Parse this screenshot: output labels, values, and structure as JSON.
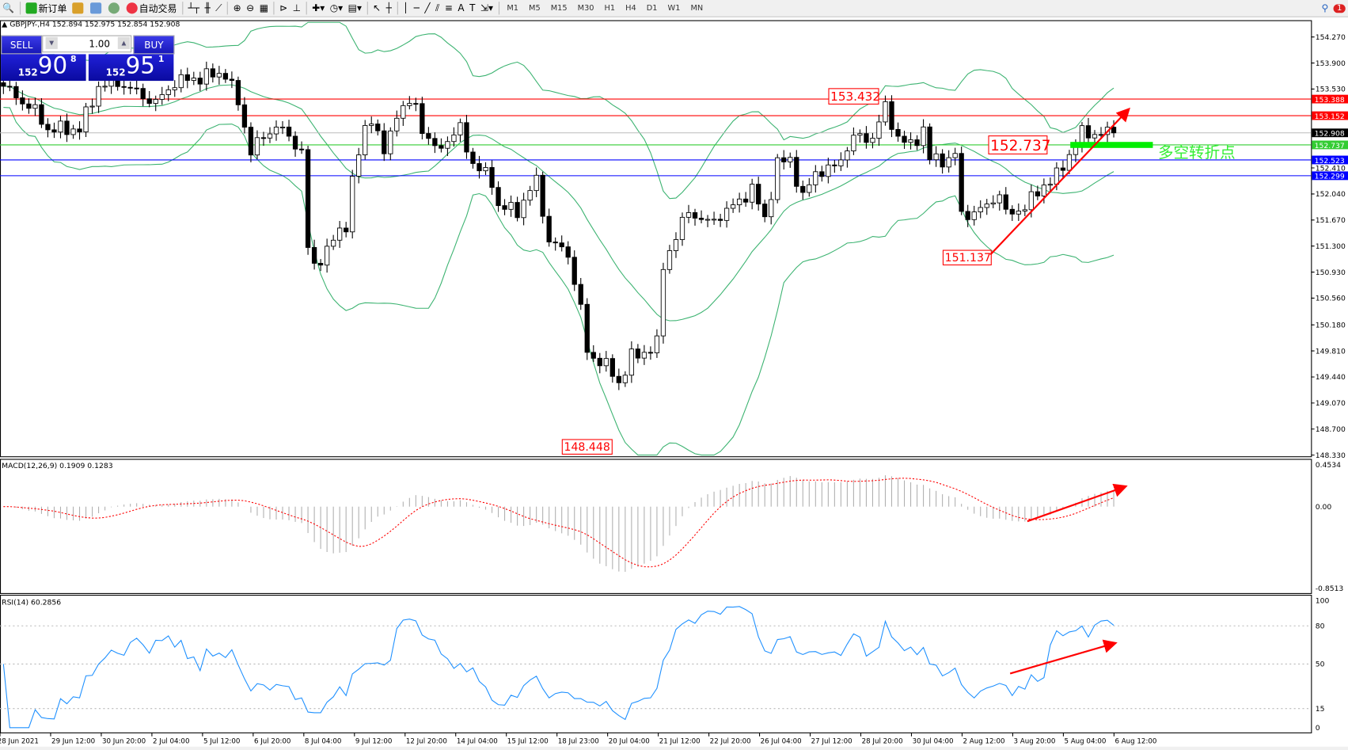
{
  "toolbar": {
    "new_order": "新订单",
    "auto_trading": "自动交易",
    "timeframes": [
      "M1",
      "M5",
      "M15",
      "M30",
      "H1",
      "H4",
      "D1",
      "W1",
      "MN"
    ],
    "notification_count": "1"
  },
  "chart": {
    "symbol_line": "GBPJPY-,H4  152.894 152.975 152.854 152.908",
    "trade_panel": {
      "sell_label": "SELL",
      "buy_label": "BUY",
      "lot": "1.00",
      "sell_big": "152",
      "sell_main": "90",
      "sell_pip": "8",
      "buy_big": "152",
      "buy_main": "95",
      "buy_pip": "1"
    },
    "price_axis": [
      "154.270",
      "153.900",
      "153.530",
      "152.410",
      "152.040",
      "151.670",
      "151.300",
      "150.930",
      "150.560",
      "150.180",
      "149.810",
      "149.440",
      "149.070",
      "148.700",
      "148.330"
    ],
    "levels": [
      {
        "price": 153.388,
        "label": "153.388",
        "color": "#ff0000"
      },
      {
        "price": 153.152,
        "label": "153.152",
        "color": "#ff0000"
      },
      {
        "price": 152.908,
        "label": "152.908",
        "color": "#000000"
      },
      {
        "price": 152.737,
        "label": "152.737",
        "color": "#33cc33"
      },
      {
        "price": 152.523,
        "label": "152.523",
        "color": "#0000ff"
      },
      {
        "price": 152.299,
        "label": "152.299",
        "color": "#0000ff"
      }
    ],
    "annotations": {
      "high1": "153.432",
      "pivot": "152.737",
      "low2": "151.137",
      "low1": "148.448",
      "turning_point": "多空转折点"
    },
    "time_axis": [
      "28 Jun 2021",
      "29 Jun 12:00",
      "30 Jun 20:00",
      "2 Jul 04:00",
      "5 Jul 12:00",
      "6 Jul 20:00",
      "8 Jul 04:00",
      "9 Jul 12:00",
      "12 Jul 20:00",
      "14 Jul 04:00",
      "15 Jul 12:00",
      "18 Jul 23:00",
      "20 Jul 04:00",
      "21 Jul 12:00",
      "22 Jul 20:00",
      "26 Jul 04:00",
      "27 Jul 12:00",
      "28 Jul 20:00",
      "30 Jul 04:00",
      "2 Aug 12:00",
      "3 Aug 20:00",
      "5 Aug 04:00",
      "6 Aug 12:00"
    ]
  },
  "macd": {
    "label": "MACD(12,26,9) 0.1909 0.1283",
    "axis": [
      "0.4534",
      "0.00",
      "-0.8513"
    ]
  },
  "rsi": {
    "label": "RSI(14) 60.2856",
    "axis": [
      "100",
      "80",
      "50",
      "15",
      "0"
    ]
  },
  "chart_data": {
    "type": "candlestick",
    "close_anchors": [
      [
        0,
        153.57
      ],
      [
        5,
        153.21
      ],
      [
        7,
        152.96
      ],
      [
        12,
        152.96
      ],
      [
        15,
        153.57
      ],
      [
        18,
        153.63
      ],
      [
        24,
        153.33
      ],
      [
        27,
        153.63
      ],
      [
        35,
        153.76
      ],
      [
        37,
        153.33
      ],
      [
        39,
        152.66
      ],
      [
        43,
        153.02
      ],
      [
        47,
        152.66
      ],
      [
        48,
        151.25
      ],
      [
        49,
        151.01
      ],
      [
        54,
        151.62
      ],
      [
        55,
        152.23
      ],
      [
        57,
        152.96
      ],
      [
        58,
        153.15
      ],
      [
        60,
        152.6
      ],
      [
        62,
        153.21
      ],
      [
        65,
        153.33
      ],
      [
        66,
        152.96
      ],
      [
        68,
        152.66
      ],
      [
        72,
        152.96
      ],
      [
        74,
        152.47
      ],
      [
        77,
        152.23
      ],
      [
        78,
        151.86
      ],
      [
        81,
        151.8
      ],
      [
        84,
        152.23
      ],
      [
        86,
        151.37
      ],
      [
        89,
        151.19
      ],
      [
        91,
        150.4
      ],
      [
        92,
        149.79
      ],
      [
        95,
        149.6
      ],
      [
        97,
        149.36
      ],
      [
        99,
        149.72
      ],
      [
        101,
        149.79
      ],
      [
        103,
        149.91
      ],
      [
        104,
        151.01
      ],
      [
        105,
        151.25
      ],
      [
        108,
        151.8
      ],
      [
        111,
        151.62
      ],
      [
        115,
        151.86
      ],
      [
        118,
        152.11
      ],
      [
        120,
        151.68
      ],
      [
        122,
        152.47
      ],
      [
        124,
        152.53
      ],
      [
        126,
        151.98
      ],
      [
        128,
        152.35
      ],
      [
        131,
        152.41
      ],
      [
        134,
        152.84
      ],
      [
        137,
        152.84
      ],
      [
        139,
        153.27
      ],
      [
        141,
        152.84
      ],
      [
        143,
        152.72
      ],
      [
        145,
        152.96
      ],
      [
        146,
        152.53
      ],
      [
        149,
        152.53
      ],
      [
        150,
        152.6
      ],
      [
        151,
        151.74
      ],
      [
        154,
        151.8
      ],
      [
        157,
        152.05
      ],
      [
        158,
        151.74
      ],
      [
        161,
        151.86
      ],
      [
        164,
        152.17
      ],
      [
        166,
        152.29
      ],
      [
        168,
        152.6
      ],
      [
        170,
        152.9
      ],
      [
        173,
        152.9
      ],
      [
        175,
        152.908
      ]
    ]
  }
}
